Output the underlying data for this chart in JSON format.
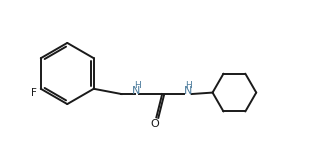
{
  "background_color": "#ffffff",
  "line_color": "#1a1a1a",
  "label_color_NH": "#4a7a9b",
  "label_color_atoms": "#1a1a1a",
  "line_width": 1.4,
  "fig_width": 3.18,
  "fig_height": 1.47,
  "dpi": 100,
  "xlim": [
    0.0,
    10.5
  ],
  "ylim": [
    1.5,
    6.5
  ]
}
